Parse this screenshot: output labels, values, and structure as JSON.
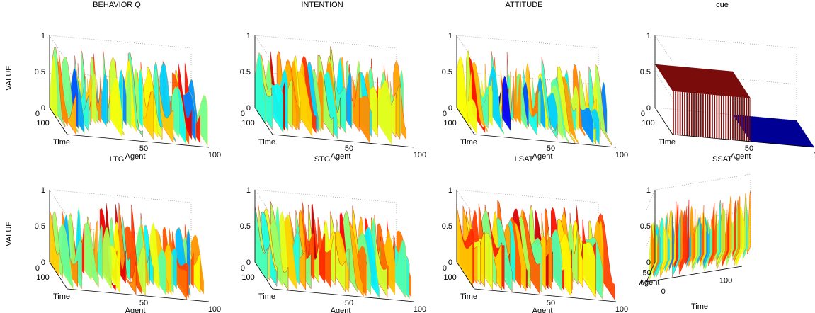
{
  "figure": {
    "ylabel": "VALUE"
  },
  "chart_data": [
    {
      "type": "surface3d",
      "title": "BEHAVIOR Q",
      "xlabel": "Time",
      "ylabel": "Agent",
      "zlabel": "VALUE",
      "view": "default",
      "time_ticks": [
        "0",
        "100"
      ],
      "agent_ticks": [
        "50",
        "100"
      ],
      "z_ticks": [
        "0",
        "0.5",
        "1"
      ],
      "time_range": [
        0,
        200
      ],
      "agent_range": [
        0,
        100
      ],
      "zlim": [
        0,
        1
      ],
      "agents": 100,
      "z_profile": {
        "base": 0.55,
        "amplitude": 0.45,
        "drift": 0.3
      },
      "colormap": "jet",
      "grid": true
    },
    {
      "type": "surface3d",
      "title": "INTENTION",
      "xlabel": "Time",
      "ylabel": "Agent",
      "zlabel": "VALUE",
      "view": "default",
      "time_ticks": [
        "0",
        "100"
      ],
      "agent_ticks": [
        "50",
        "100"
      ],
      "z_ticks": [
        "0",
        "0.5",
        "1"
      ],
      "time_range": [
        0,
        200
      ],
      "agent_range": [
        0,
        100
      ],
      "zlim": [
        0,
        1
      ],
      "agents": 100,
      "z_profile": {
        "base": 0.6,
        "amplitude": 0.4,
        "drift": 0.2
      },
      "colormap": "jet",
      "grid": true
    },
    {
      "type": "surface3d",
      "title": "ATTITUDE",
      "xlabel": "Time",
      "ylabel": "Agent",
      "zlabel": "VALUE",
      "view": "default",
      "time_ticks": [
        "0",
        "100"
      ],
      "agent_ticks": [
        "50",
        "100"
      ],
      "z_ticks": [
        "0",
        "0.5",
        "1"
      ],
      "time_range": [
        0,
        200
      ],
      "agent_range": [
        0,
        100
      ],
      "zlim": [
        0,
        1
      ],
      "agents": 100,
      "z_profile": {
        "base": 0.5,
        "amplitude": 0.45,
        "drift": 0.35
      },
      "colormap": "jet",
      "grid": true
    },
    {
      "type": "surface3d",
      "title": "cue",
      "xlabel": "Time",
      "ylabel": "Agent",
      "zlabel": "VALUE",
      "view": "default",
      "time_ticks": [
        "0",
        "100"
      ],
      "agent_ticks": [
        "50",
        "100"
      ],
      "z_ticks": [
        "0",
        "0.5",
        "1"
      ],
      "time_range": [
        0,
        200
      ],
      "agent_range": [
        0,
        100
      ],
      "zlim": [
        0,
        1
      ],
      "agents": 100,
      "cue": {
        "on_level": 0.6,
        "on_fraction_agents": 0.55,
        "off_level": 0.0
      },
      "colormap": "jet",
      "grid": true
    },
    {
      "type": "surface3d",
      "title": "LTG",
      "xlabel": "Time",
      "ylabel": "Agent",
      "zlabel": "VALUE",
      "view": "default",
      "time_ticks": [
        "0",
        "100"
      ],
      "agent_ticks": [
        "50",
        "100"
      ],
      "z_ticks": [
        "0",
        "0.5",
        "1"
      ],
      "time_range": [
        0,
        200
      ],
      "agent_range": [
        0,
        100
      ],
      "zlim": [
        0,
        1
      ],
      "agents": 100,
      "z_profile": {
        "base": 0.55,
        "amplitude": 0.45,
        "drift": 0.3
      },
      "colormap": "jet",
      "grid": true
    },
    {
      "type": "surface3d",
      "title": "STG",
      "xlabel": "Time",
      "ylabel": "Agent",
      "zlabel": "VALUE",
      "view": "default",
      "time_ticks": [
        "0",
        "100"
      ],
      "agent_ticks": [
        "50",
        "100"
      ],
      "z_ticks": [
        "0",
        "0.5",
        "1"
      ],
      "time_range": [
        0,
        200
      ],
      "agent_range": [
        0,
        100
      ],
      "zlim": [
        0,
        1
      ],
      "agents": 100,
      "z_profile": {
        "base": 0.6,
        "amplitude": 0.4,
        "drift": 0.25
      },
      "colormap": "jet",
      "grid": true
    },
    {
      "type": "surface3d",
      "title": "LSAT",
      "xlabel": "Time",
      "ylabel": "Agent",
      "zlabel": "VALUE",
      "view": "default",
      "time_ticks": [
        "0",
        "100"
      ],
      "agent_ticks": [
        "50",
        "100"
      ],
      "z_ticks": [
        "0",
        "0.5",
        "1"
      ],
      "time_range": [
        0,
        200
      ],
      "agent_range": [
        0,
        100
      ],
      "zlim": [
        0,
        1
      ],
      "agents": 100,
      "z_profile": {
        "base": 0.65,
        "amplitude": 0.35,
        "drift": 0.2
      },
      "colormap": "jet",
      "grid": true
    },
    {
      "type": "surface3d",
      "title": "SSAT",
      "xlabel": "Time",
      "ylabel": "Agent",
      "zlabel": "VALUE",
      "view": "rotated",
      "time_ticks": [
        "0",
        "100"
      ],
      "agent_ticks": [
        "0",
        "50"
      ],
      "z_ticks": [
        "0",
        "0.5",
        "1"
      ],
      "time_range": [
        0,
        200
      ],
      "agent_range": [
        0,
        100
      ],
      "zlim": [
        0,
        1
      ],
      "agents": 100,
      "z_profile": {
        "base": 0.55,
        "amplitude": 0.3,
        "drift": 0.15
      },
      "colormap": "jet",
      "grid": true
    }
  ]
}
